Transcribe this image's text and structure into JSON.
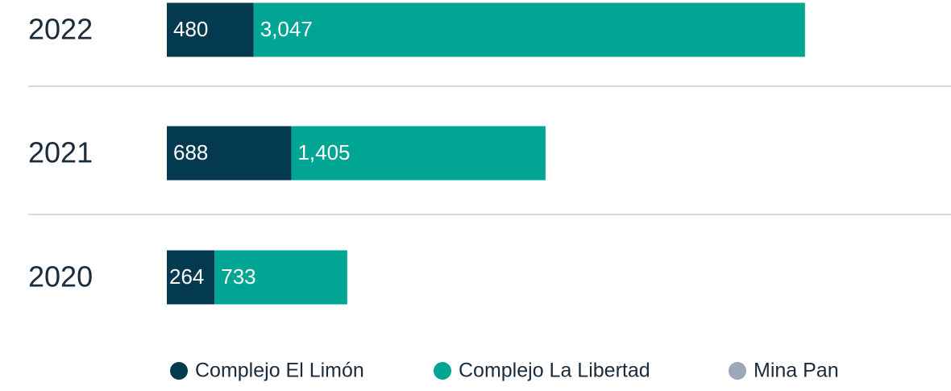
{
  "chart_data": {
    "type": "bar",
    "orientation": "horizontal",
    "stacked": true,
    "categories": [
      "2022",
      "2021",
      "2020"
    ],
    "series": [
      {
        "name": "Complejo El Limón",
        "color": "#043a4f",
        "values": [
          480,
          688,
          264
        ]
      },
      {
        "name": "Complejo La Libertad",
        "color": "#00a593",
        "values": [
          3047,
          1405,
          733
        ],
        "value_labels": [
          "3,047",
          "1,405",
          "733"
        ]
      },
      {
        "name": "Mina Pan",
        "color": "#9aa8b8",
        "values": [
          null,
          null,
          null
        ]
      }
    ]
  }
}
